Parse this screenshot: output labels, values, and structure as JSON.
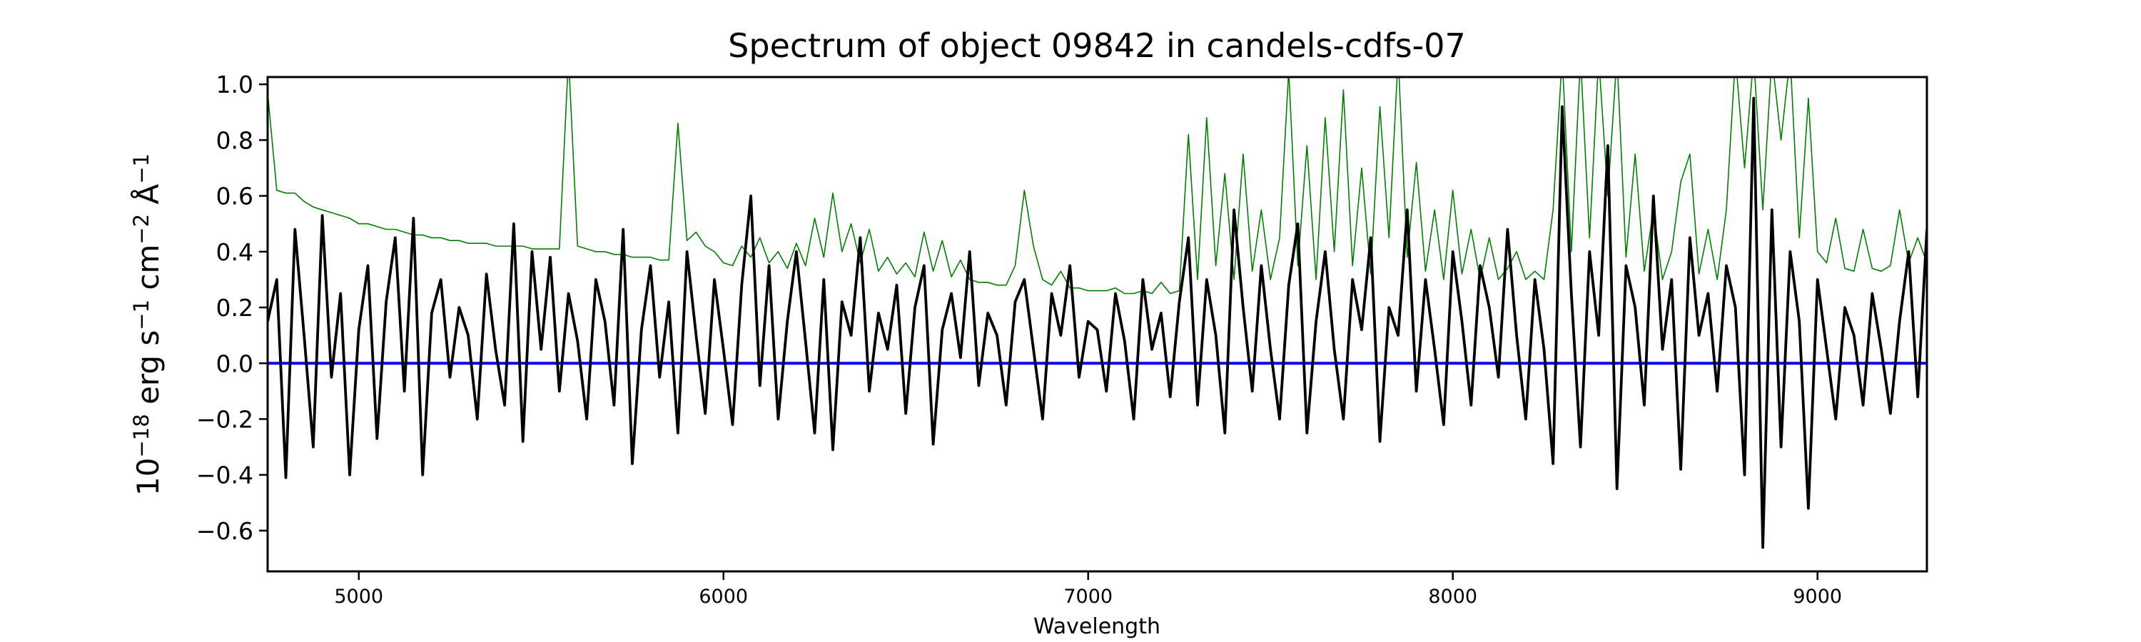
{
  "chart_data": {
    "type": "line",
    "title": "Spectrum of object 09842 in candels-cdfs-07",
    "xlabel": "Wavelength",
    "ylabel_parts": [
      {
        "text": "10",
        "sup": "−18"
      },
      {
        "text": " erg s",
        "sup": "−1"
      },
      {
        "text": " cm",
        "sup": "−2"
      },
      {
        "text": " Å",
        "sup": "−1"
      }
    ],
    "xlim": [
      4750,
      9300
    ],
    "ylim": [
      -0.746,
      1.026
    ],
    "xticks": [
      5000,
      6000,
      7000,
      8000,
      9000
    ],
    "xtick_labels": [
      "5000",
      "6000",
      "7000",
      "8000",
      "9000"
    ],
    "yticks": [
      -0.6,
      -0.4,
      -0.2,
      0.0,
      0.2,
      0.4,
      0.6,
      0.8,
      1.0
    ],
    "ytick_labels": [
      "−0.6",
      "−0.4",
      "−0.2",
      "0.0",
      "0.2",
      "0.4",
      "0.6",
      "0.8",
      "1.0"
    ],
    "grid": false,
    "x_start": 4750,
    "x_step": 25,
    "series": [
      {
        "color": "#008000",
        "values": [
          0.97,
          0.62,
          0.61,
          0.61,
          0.58,
          0.56,
          0.55,
          0.54,
          0.53,
          0.52,
          0.5,
          0.5,
          0.49,
          0.48,
          0.48,
          0.47,
          0.46,
          0.46,
          0.45,
          0.45,
          0.44,
          0.44,
          0.43,
          0.43,
          0.43,
          0.42,
          0.42,
          0.42,
          0.42,
          0.41,
          0.41,
          0.41,
          0.41,
          1.1,
          0.42,
          0.41,
          0.4,
          0.4,
          0.39,
          0.39,
          0.38,
          0.38,
          0.38,
          0.37,
          0.37,
          0.86,
          0.44,
          0.47,
          0.42,
          0.4,
          0.36,
          0.35,
          0.42,
          0.38,
          0.45,
          0.36,
          0.4,
          0.34,
          0.43,
          0.35,
          0.52,
          0.38,
          0.61,
          0.4,
          0.5,
          0.36,
          0.48,
          0.33,
          0.38,
          0.32,
          0.36,
          0.31,
          0.47,
          0.33,
          0.44,
          0.31,
          0.37,
          0.3,
          0.29,
          0.29,
          0.28,
          0.28,
          0.35,
          0.62,
          0.42,
          0.3,
          0.28,
          0.33,
          0.27,
          0.27,
          0.26,
          0.26,
          0.26,
          0.27,
          0.25,
          0.25,
          0.26,
          0.25,
          0.29,
          0.25,
          0.26,
          0.82,
          0.3,
          0.88,
          0.35,
          0.68,
          0.3,
          0.75,
          0.33,
          0.55,
          0.3,
          0.45,
          1.05,
          0.35,
          0.78,
          0.3,
          0.88,
          0.4,
          0.98,
          0.35,
          0.7,
          0.32,
          0.92,
          0.45,
          1.1,
          0.38,
          0.72,
          0.33,
          0.55,
          0.3,
          0.62,
          0.32,
          0.48,
          0.3,
          0.45,
          0.3,
          0.34,
          0.4,
          0.3,
          0.33,
          0.3,
          0.55,
          1.1,
          0.4,
          1.1,
          0.45,
          1.1,
          0.6,
          1.1,
          0.38,
          0.75,
          0.33,
          0.55,
          0.3,
          0.4,
          0.65,
          0.75,
          0.32,
          0.48,
          0.3,
          0.55,
          1.1,
          0.7,
          1.1,
          0.55,
          1.1,
          0.8,
          1.1,
          0.45,
          0.95,
          0.4,
          0.36,
          0.52,
          0.34,
          0.33,
          0.48,
          0.34,
          0.33,
          0.35,
          0.55,
          0.36,
          0.45,
          0.36
        ]
      },
      {
        "color": "#000000",
        "values": [
          0.15,
          0.3,
          -0.41,
          0.48,
          0.1,
          -0.3,
          0.53,
          -0.05,
          0.25,
          -0.4,
          0.12,
          0.35,
          -0.27,
          0.22,
          0.45,
          -0.1,
          0.52,
          -0.4,
          0.18,
          0.3,
          -0.05,
          0.2,
          0.1,
          -0.2,
          0.32,
          0.05,
          -0.15,
          0.5,
          -0.28,
          0.4,
          0.05,
          0.38,
          -0.1,
          0.25,
          0.08,
          -0.2,
          0.3,
          0.15,
          -0.15,
          0.48,
          -0.36,
          0.12,
          0.35,
          -0.05,
          0.22,
          -0.25,
          0.4,
          0.1,
          -0.18,
          0.3,
          0.05,
          -0.22,
          0.28,
          0.6,
          -0.08,
          0.35,
          -0.2,
          0.15,
          0.4,
          0.08,
          -0.25,
          0.3,
          -0.31,
          0.22,
          0.1,
          0.45,
          -0.1,
          0.18,
          0.05,
          0.28,
          -0.18,
          0.2,
          0.35,
          -0.29,
          0.12,
          0.25,
          0.02,
          0.4,
          -0.08,
          0.18,
          0.1,
          -0.15,
          0.22,
          0.3,
          0.05,
          -0.2,
          0.25,
          0.1,
          0.35,
          -0.05,
          0.15,
          0.12,
          -0.1,
          0.25,
          0.08,
          -0.2,
          0.3,
          0.05,
          0.18,
          -0.12,
          0.22,
          0.45,
          -0.15,
          0.3,
          0.1,
          -0.25,
          0.55,
          0.2,
          -0.1,
          0.35,
          0.05,
          -0.2,
          0.28,
          0.5,
          -0.25,
          0.15,
          0.4,
          0.05,
          -0.2,
          0.3,
          0.12,
          0.45,
          -0.28,
          0.2,
          0.1,
          0.55,
          -0.1,
          0.3,
          0.05,
          -0.22,
          0.4,
          0.15,
          -0.15,
          0.35,
          0.2,
          -0.05,
          0.48,
          0.1,
          -0.2,
          0.3,
          0.05,
          -0.36,
          0.92,
          0.25,
          -0.3,
          0.4,
          0.1,
          0.78,
          -0.45,
          0.35,
          0.2,
          -0.15,
          0.6,
          0.05,
          0.3,
          -0.38,
          0.45,
          0.1,
          0.25,
          -0.1,
          0.35,
          0.2,
          -0.4,
          0.95,
          -0.66,
          0.55,
          -0.3,
          0.4,
          0.15,
          -0.52,
          0.3,
          0.05,
          -0.2,
          0.2,
          0.1,
          -0.15,
          0.25,
          0.05,
          -0.18,
          0.15,
          0.4,
          -0.12,
          0.48
        ]
      },
      {
        "color": "#0000ff",
        "values_constant": 0.0
      }
    ]
  }
}
